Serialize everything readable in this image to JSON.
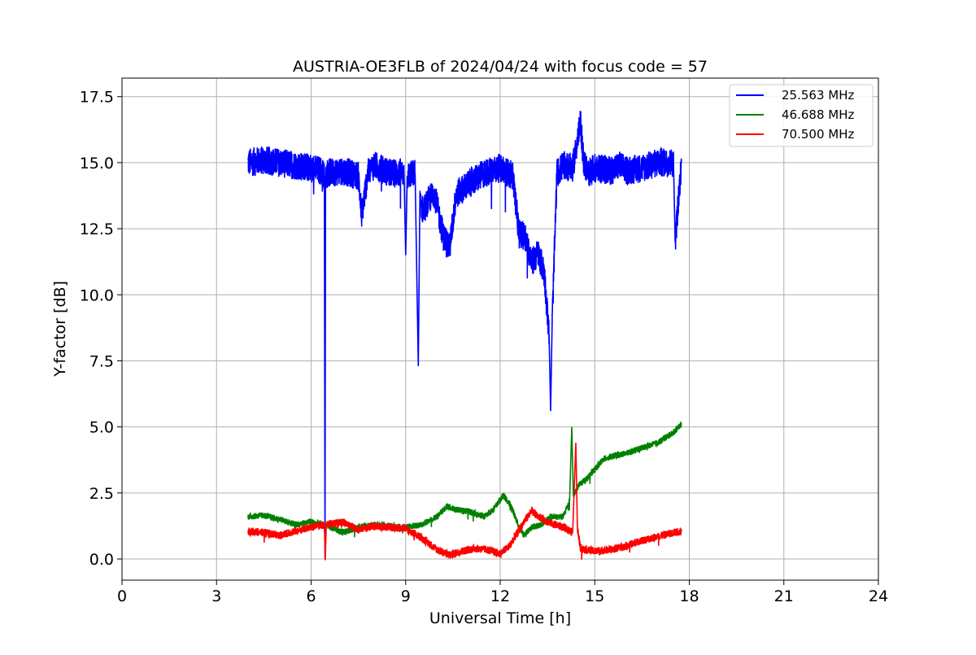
{
  "chart_data": {
    "type": "line",
    "title": "AUSTRIA-OE3FLB of 2024/04/24 with focus code = 57",
    "xlabel": "Universal Time [h]",
    "ylabel": "Y-factor [dB]",
    "xlim": [
      0,
      24
    ],
    "ylim": [
      -0.8,
      18.2
    ],
    "x_ticks": [
      0,
      3,
      6,
      9,
      12,
      15,
      18,
      21,
      24
    ],
    "x_tick_labels": [
      "0",
      "3",
      "6",
      "9",
      "12",
      "15",
      "18",
      "21",
      "24"
    ],
    "y_ticks": [
      0.0,
      2.5,
      5.0,
      7.5,
      10.0,
      12.5,
      15.0,
      17.5
    ],
    "y_tick_labels": [
      "0.0",
      "2.5",
      "5.0",
      "7.5",
      "10.0",
      "12.5",
      "15.0",
      "17.5"
    ],
    "grid": true,
    "legend_position": "top-right",
    "series": [
      {
        "name": "25.563 MHz",
        "color": "#0000ff",
        "noise": 0.55,
        "x": [
          4.0,
          4.5,
          5.0,
          5.5,
          6.0,
          6.3,
          6.42,
          6.44,
          6.46,
          6.5,
          7.0,
          7.5,
          7.6,
          7.8,
          8.0,
          8.5,
          8.95,
          9.0,
          9.05,
          9.3,
          9.4,
          9.45,
          9.55,
          9.9,
          10.2,
          10.4,
          10.6,
          11.0,
          11.5,
          12.0,
          12.4,
          12.6,
          12.8,
          13.0,
          13.2,
          13.4,
          13.55,
          13.6,
          13.65,
          13.8,
          14.0,
          14.3,
          14.5,
          14.55,
          14.65,
          14.8,
          15.0,
          15.5,
          15.8,
          16.0,
          16.5,
          17.0,
          17.5,
          17.55,
          17.75
        ],
        "y": [
          15.0,
          15.1,
          15.0,
          14.9,
          14.8,
          14.7,
          14.5,
          0.0,
          14.5,
          14.6,
          14.7,
          14.5,
          13.0,
          14.6,
          14.9,
          14.6,
          14.6,
          11.5,
          14.5,
          14.6,
          7.3,
          13.5,
          13.2,
          13.9,
          12.2,
          11.8,
          13.8,
          14.2,
          14.6,
          14.8,
          14.5,
          12.3,
          12.2,
          11.2,
          11.6,
          10.8,
          8.5,
          5.6,
          9.0,
          14.6,
          14.9,
          14.8,
          16.2,
          16.5,
          15.0,
          14.6,
          14.8,
          14.7,
          14.9,
          14.7,
          14.8,
          15.0,
          15.0,
          12.0,
          15.0
        ]
      },
      {
        "name": "46.688 MHz",
        "color": "#008000",
        "noise": 0.12,
        "x": [
          4.0,
          4.5,
          5.0,
          5.5,
          6.0,
          6.45,
          7.0,
          7.5,
          8.0,
          8.5,
          9.0,
          9.5,
          10.0,
          10.3,
          10.7,
          11.0,
          11.5,
          11.8,
          12.1,
          12.35,
          12.6,
          12.75,
          13.0,
          13.3,
          13.6,
          14.0,
          14.2,
          14.27,
          14.32,
          14.5,
          14.8,
          15.0,
          15.3,
          15.6,
          16.0,
          16.5,
          17.0,
          17.5,
          17.75
        ],
        "y": [
          1.6,
          1.65,
          1.5,
          1.3,
          1.4,
          1.3,
          1.0,
          1.2,
          1.3,
          1.25,
          1.2,
          1.3,
          1.6,
          2.0,
          1.85,
          1.8,
          1.6,
          1.9,
          2.4,
          2.0,
          1.2,
          0.9,
          1.2,
          1.3,
          1.6,
          1.6,
          2.2,
          5.0,
          2.4,
          2.8,
          3.1,
          3.4,
          3.8,
          3.9,
          4.0,
          4.2,
          4.4,
          4.8,
          5.1
        ]
      },
      {
        "name": "70.500 MHz",
        "color": "#ff0000",
        "noise": 0.15,
        "x": [
          4.0,
          4.5,
          5.0,
          5.5,
          6.0,
          6.42,
          6.45,
          6.48,
          7.0,
          7.5,
          8.0,
          8.5,
          9.0,
          9.5,
          10.0,
          10.4,
          10.8,
          11.2,
          11.6,
          12.0,
          12.3,
          12.5,
          12.8,
          13.0,
          13.5,
          14.0,
          14.3,
          14.4,
          14.45,
          14.55,
          14.7,
          15.0,
          15.5,
          16.0,
          16.5,
          17.0,
          17.5,
          17.75
        ],
        "y": [
          1.05,
          1.0,
          0.9,
          1.05,
          1.2,
          1.3,
          0.0,
          1.3,
          1.4,
          1.1,
          1.25,
          1.2,
          1.15,
          0.8,
          0.35,
          0.15,
          0.3,
          0.4,
          0.35,
          0.2,
          0.5,
          0.9,
          1.5,
          1.8,
          1.4,
          1.2,
          1.0,
          4.4,
          1.2,
          0.4,
          0.35,
          0.3,
          0.35,
          0.5,
          0.7,
          0.85,
          1.0,
          1.05
        ]
      }
    ]
  }
}
